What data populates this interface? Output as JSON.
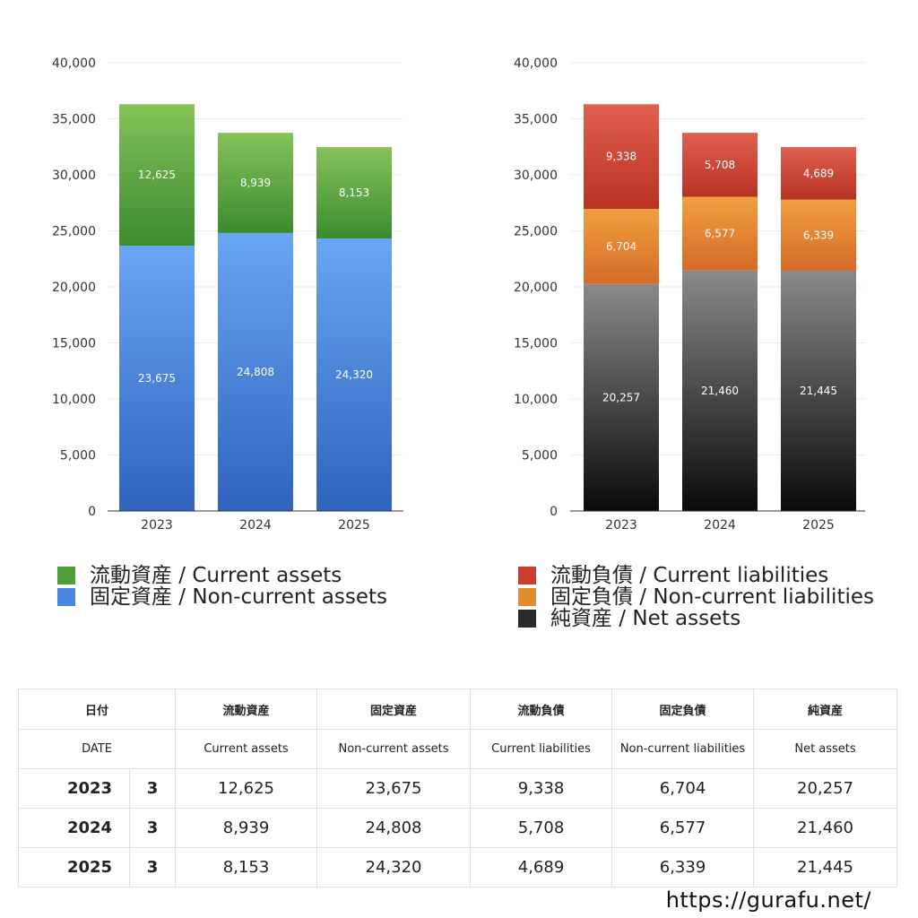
{
  "chart_data": [
    {
      "type": "bar",
      "stacked": true,
      "categories": [
        "2023",
        "2024",
        "2025"
      ],
      "series": [
        {
          "name": "固定資産 / Non-current assets",
          "values": [
            23675,
            24808,
            24320
          ],
          "color_top": "#69a6f3",
          "color_bottom": "#2f63bd"
        },
        {
          "name": "流動資産 / Current assets",
          "values": [
            12625,
            8939,
            8153
          ],
          "color_top": "#86c25a",
          "color_bottom": "#3c8b30"
        }
      ],
      "yticks": [
        "0",
        "5,000",
        "10,000",
        "15,000",
        "20,000",
        "25,000",
        "30,000",
        "35,000",
        "40,000"
      ],
      "ylim": [
        0,
        40000
      ],
      "grid": true,
      "legend": "bottom"
    },
    {
      "type": "bar",
      "stacked": true,
      "categories": [
        "2023",
        "2024",
        "2025"
      ],
      "series": [
        {
          "name": "純資産 / Net assets",
          "values": [
            20257,
            21460,
            21445
          ],
          "color_top": "#8a8a8a",
          "color_bottom": "#0a0a0a"
        },
        {
          "name": "固定負債 / Non-current liabilities",
          "values": [
            6704,
            6577,
            6339
          ],
          "color_top": "#f0a040",
          "color_bottom": "#d46a28"
        },
        {
          "name": "流動負債 / Current liabilities",
          "values": [
            9338,
            5708,
            4689
          ],
          "color_top": "#e06050",
          "color_bottom": "#b83224"
        }
      ],
      "yticks": [
        "0",
        "5,000",
        "10,000",
        "15,000",
        "20,000",
        "25,000",
        "30,000",
        "35,000",
        "40,000"
      ],
      "ylim": [
        0,
        40000
      ],
      "grid": true,
      "legend": "bottom"
    }
  ],
  "legends": {
    "left": [
      {
        "label": "流動資産 / Current assets",
        "color": "#4f9d3c"
      },
      {
        "label": "固定資産 / Non-current assets",
        "color": "#4a86e0"
      }
    ],
    "right": [
      {
        "label": "流動負債 / Current liabilities",
        "color": "#c8402f"
      },
      {
        "label": "固定負債 / Non-current liabilities",
        "color": "#e08a32"
      },
      {
        "label": "純資産 / Net assets",
        "color": "#2a2a2a"
      }
    ]
  },
  "table": {
    "header_jp": [
      "日付",
      "流動資産",
      "固定資産",
      "流動負債",
      "固定負債",
      "純資産"
    ],
    "header_en": [
      "DATE",
      "Current assets",
      "Non-current assets",
      "Current liabilities",
      "Non-current liabilities",
      "Net assets"
    ],
    "rows": [
      {
        "year": "2023",
        "month": "3",
        "values": [
          "12,625",
          "23,675",
          "9,338",
          "6,704",
          "20,257"
        ]
      },
      {
        "year": "2024",
        "month": "3",
        "values": [
          "8,939",
          "24,808",
          "5,708",
          "6,577",
          "21,460"
        ]
      },
      {
        "year": "2025",
        "month": "3",
        "values": [
          "8,153",
          "24,320",
          "4,689",
          "6,339",
          "21,445"
        ]
      }
    ]
  },
  "footer": "https://gurafu.net/"
}
